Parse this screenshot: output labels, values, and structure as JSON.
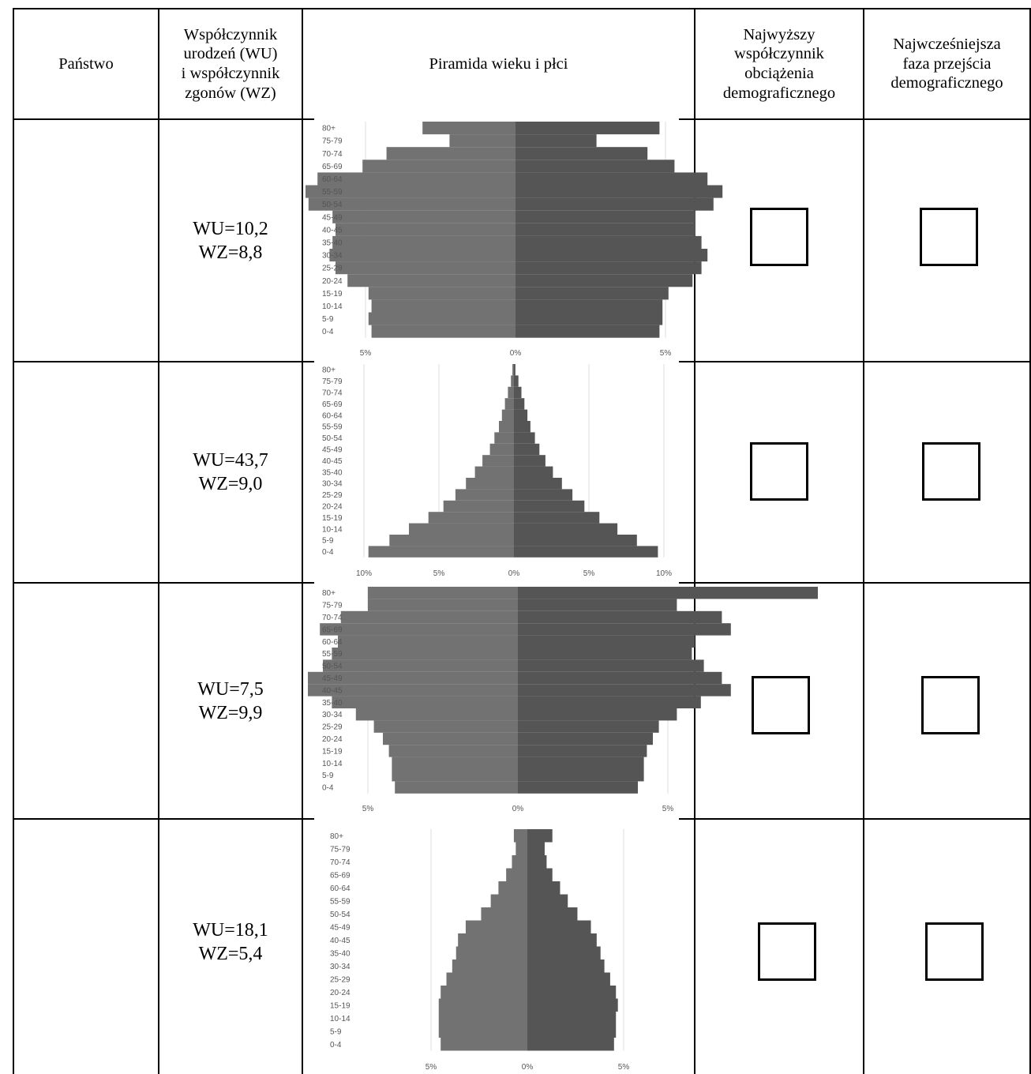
{
  "header": {
    "col_country": "Państwo",
    "col_rates": [
      "Współczynnik",
      "urodzeń (WU)",
      "i współczynnik",
      "zgonów (WZ)"
    ],
    "col_pyramid": "Piramida wieku i płci",
    "col_dependency": [
      "Najwyższy",
      "współczynnik",
      "obciążenia",
      "demograficznego"
    ],
    "col_transition": [
      "Najwcześniejsza",
      "faza przejścia",
      "demograficznego"
    ]
  },
  "rows": [
    {
      "country": "",
      "wu": "WU=10,2",
      "wz": "WZ=8,8"
    },
    {
      "country": "",
      "wu": "WU=43,7",
      "wz": "WZ=9,0"
    },
    {
      "country": "",
      "wu": "WU=7,5",
      "wz": "WZ=9,9"
    },
    {
      "country": "",
      "wu": "WU=18,1",
      "wz": "WZ=5,4"
    }
  ],
  "colors": {
    "male_bar": "#727272",
    "female_bar": "#555555",
    "grid": "#dddddd",
    "label": "#555555"
  },
  "chart_data": [
    {
      "type": "bar",
      "orientation": "horizontal-pyramid",
      "categories": [
        "0-4",
        "5-9",
        "10-14",
        "15-19",
        "20-24",
        "25-29",
        "30-34",
        "35-40",
        "40-45",
        "45-49",
        "50-54",
        "55-59",
        "60-64",
        "65-69",
        "70-74",
        "75-79",
        "80+"
      ],
      "xlim": [
        -5,
        5
      ],
      "xticks": [
        "5%",
        "0%",
        "5%"
      ],
      "series": [
        {
          "values": [
            4.8,
            4.9,
            4.8,
            4.9,
            5.6,
            6.0,
            6.2,
            6.1,
            6.0,
            6.1,
            6.9,
            7.0,
            6.6,
            5.1,
            4.3,
            2.2,
            3.1
          ]
        },
        {
          "values": [
            4.8,
            4.9,
            4.9,
            5.1,
            5.9,
            6.2,
            6.4,
            6.2,
            6.0,
            6.0,
            6.6,
            6.9,
            6.4,
            5.3,
            4.4,
            2.7,
            4.8
          ]
        }
      ]
    },
    {
      "type": "bar",
      "orientation": "horizontal-pyramid",
      "categories": [
        "0-4",
        "5-9",
        "10-14",
        "15-19",
        "20-24",
        "25-29",
        "30-34",
        "35-40",
        "40-45",
        "45-49",
        "50-54",
        "55-59",
        "60-64",
        "65-69",
        "70-74",
        "75-79",
        "80+"
      ],
      "xlim": [
        -10,
        10
      ],
      "xticks": [
        "10%",
        "5%",
        "0%",
        "5%",
        "10%"
      ],
      "series": [
        {
          "values": [
            9.7,
            8.3,
            7.0,
            5.7,
            4.7,
            3.9,
            3.2,
            2.6,
            2.1,
            1.6,
            1.3,
            1.0,
            0.8,
            0.6,
            0.4,
            0.2,
            0.1
          ]
        },
        {
          "values": [
            9.6,
            8.2,
            6.9,
            5.7,
            4.7,
            3.9,
            3.2,
            2.6,
            2.1,
            1.7,
            1.4,
            1.1,
            0.9,
            0.7,
            0.5,
            0.3,
            0.1
          ]
        }
      ]
    },
    {
      "type": "bar",
      "orientation": "horizontal-pyramid",
      "categories": [
        "0-4",
        "5-9",
        "10-14",
        "15-19",
        "20-24",
        "25-29",
        "30-34",
        "35-40",
        "40-45",
        "45-49",
        "50-54",
        "55-59",
        "60-64",
        "65-69",
        "70-74",
        "75-79",
        "80+"
      ],
      "xlim": [
        -5,
        5
      ],
      "xticks": [
        "5%",
        "0%",
        "5%"
      ],
      "series": [
        {
          "values": [
            4.1,
            4.2,
            4.2,
            4.3,
            4.5,
            4.8,
            5.4,
            6.2,
            7.0,
            7.0,
            6.5,
            6.2,
            6.0,
            6.6,
            5.9,
            5.0,
            5.0
          ]
        },
        {
          "values": [
            4.0,
            4.2,
            4.2,
            4.3,
            4.5,
            4.7,
            5.3,
            6.1,
            7.1,
            6.8,
            6.2,
            5.8,
            5.9,
            7.1,
            6.8,
            5.3,
            10.0
          ]
        }
      ]
    },
    {
      "type": "bar",
      "orientation": "horizontal-pyramid",
      "categories": [
        "0-4",
        "5-9",
        "10-14",
        "15-19",
        "20-24",
        "25-29",
        "30-34",
        "35-40",
        "40-45",
        "45-49",
        "50-54",
        "55-59",
        "60-64",
        "65-69",
        "70-74",
        "75-79",
        "80+"
      ],
      "xlim": [
        -5,
        5
      ],
      "xticks": [
        "5%",
        "0%",
        "5%"
      ],
      "series": [
        {
          "values": [
            4.5,
            4.6,
            4.6,
            4.6,
            4.5,
            4.2,
            3.9,
            3.7,
            3.6,
            3.2,
            2.4,
            1.9,
            1.5,
            1.1,
            0.8,
            0.6,
            0.7
          ]
        },
        {
          "values": [
            4.5,
            4.6,
            4.6,
            4.7,
            4.6,
            4.3,
            4.0,
            3.8,
            3.6,
            3.3,
            2.6,
            2.1,
            1.7,
            1.3,
            1.0,
            0.9,
            1.3
          ]
        }
      ]
    }
  ]
}
